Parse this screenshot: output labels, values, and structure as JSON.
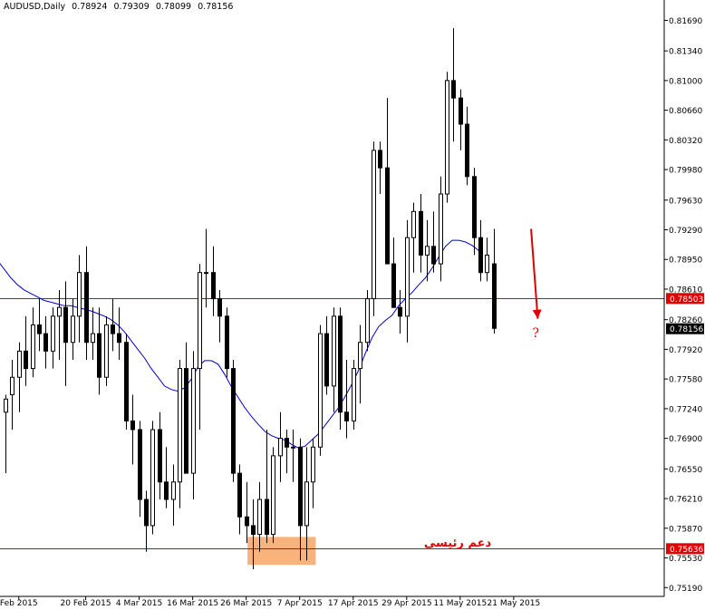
{
  "header": {
    "symbol": "AUDUSD,Daily",
    "open": "0.78924",
    "high": "0.79309",
    "low": "0.78099",
    "close": "0.78156"
  },
  "colors": {
    "candle_up_fill": "#ffffff",
    "candle_down_fill": "#000000",
    "candle_outline": "#000000",
    "moving_average": "#0000cc",
    "horizontal_lines": "#e00000",
    "support_zone": "#f8b27c",
    "arrow": "#e00000",
    "current_price_label_bg": "#000000"
  },
  "chart_data": {
    "type": "candlestick",
    "ylim": [
      0.7512,
      0.8184
    ],
    "y_ticks": [
      "0.81690",
      "0.81340",
      "0.81000",
      "0.80660",
      "0.80320",
      "0.79980",
      "0.79630",
      "0.79290",
      "0.78950",
      "0.78610",
      "0.78260",
      "0.77920",
      "0.77580",
      "0.77240",
      "0.76900",
      "0.76550",
      "0.76210",
      "0.75870",
      "0.75530",
      "0.75190"
    ],
    "x_ticks": [
      {
        "label": "Feb 2015",
        "index": 2
      },
      {
        "label": "20 Feb 2015",
        "index": 12
      },
      {
        "label": "4 Mar 2015",
        "index": 20
      },
      {
        "label": "16 Mar 2015",
        "index": 28
      },
      {
        "label": "26 Mar 2015",
        "index": 36
      },
      {
        "label": "7 Apr 2015",
        "index": 44
      },
      {
        "label": "17 Apr 2015",
        "index": 52
      },
      {
        "label": "29 Apr 2015",
        "index": 60
      },
      {
        "label": "11 May 2015",
        "index": 68
      },
      {
        "label": "21 May 2015",
        "index": 76
      }
    ],
    "candles": [
      [
        0.772,
        0.774,
        0.765,
        0.7735
      ],
      [
        0.774,
        0.778,
        0.77,
        0.776
      ],
      [
        0.776,
        0.78,
        0.772,
        0.779
      ],
      [
        0.779,
        0.783,
        0.775,
        0.777
      ],
      [
        0.777,
        0.784,
        0.776,
        0.782
      ],
      [
        0.782,
        0.785,
        0.779,
        0.781
      ],
      [
        0.781,
        0.783,
        0.777,
        0.779
      ],
      [
        0.779,
        0.784,
        0.777,
        0.783
      ],
      [
        0.783,
        0.786,
        0.778,
        0.784
      ],
      [
        0.784,
        0.787,
        0.775,
        0.78
      ],
      [
        0.78,
        0.785,
        0.778,
        0.783
      ],
      [
        0.783,
        0.79,
        0.78,
        0.788
      ],
      [
        0.788,
        0.791,
        0.778,
        0.78
      ],
      [
        0.78,
        0.784,
        0.778,
        0.781
      ],
      [
        0.781,
        0.784,
        0.774,
        0.776
      ],
      [
        0.776,
        0.783,
        0.775,
        0.782
      ],
      [
        0.782,
        0.785,
        0.779,
        0.781
      ],
      [
        0.781,
        0.784,
        0.778,
        0.78
      ],
      [
        0.78,
        0.781,
        0.77,
        0.771
      ],
      [
        0.771,
        0.774,
        0.766,
        0.77
      ],
      [
        0.77,
        0.771,
        0.76,
        0.762
      ],
      [
        0.762,
        0.763,
        0.756,
        0.759
      ],
      [
        0.759,
        0.771,
        0.758,
        0.77
      ],
      [
        0.77,
        0.772,
        0.762,
        0.764
      ],
      [
        0.764,
        0.768,
        0.761,
        0.762
      ],
      [
        0.762,
        0.766,
        0.759,
        0.764
      ],
      [
        0.764,
        0.778,
        0.761,
        0.777
      ],
      [
        0.777,
        0.78,
        0.765,
        0.765
      ],
      [
        0.765,
        0.779,
        0.762,
        0.777
      ],
      [
        0.777,
        0.789,
        0.77,
        0.788
      ],
      [
        0.788,
        0.793,
        0.784,
        0.788
      ],
      [
        0.788,
        0.791,
        0.783,
        0.785
      ],
      [
        0.785,
        0.786,
        0.78,
        0.783
      ],
      [
        0.783,
        0.784,
        0.776,
        0.777
      ],
      [
        0.777,
        0.778,
        0.764,
        0.765
      ],
      [
        0.765,
        0.766,
        0.758,
        0.76
      ],
      [
        0.76,
        0.764,
        0.757,
        0.759
      ],
      [
        0.759,
        0.762,
        0.754,
        0.758
      ],
      [
        0.758,
        0.764,
        0.756,
        0.762
      ],
      [
        0.762,
        0.77,
        0.757,
        0.758
      ],
      [
        0.758,
        0.768,
        0.757,
        0.767
      ],
      [
        0.767,
        0.772,
        0.764,
        0.769
      ],
      [
        0.769,
        0.77,
        0.765,
        0.768
      ],
      [
        0.768,
        0.77,
        0.764,
        0.768
      ],
      [
        0.768,
        0.769,
        0.755,
        0.759
      ],
      [
        0.759,
        0.768,
        0.755,
        0.764
      ],
      [
        0.764,
        0.769,
        0.761,
        0.768
      ],
      [
        0.768,
        0.782,
        0.767,
        0.781
      ],
      [
        0.781,
        0.783,
        0.774,
        0.775
      ],
      [
        0.775,
        0.784,
        0.772,
        0.783
      ],
      [
        0.783,
        0.784,
        0.77,
        0.772
      ],
      [
        0.772,
        0.778,
        0.769,
        0.771
      ],
      [
        0.771,
        0.778,
        0.77,
        0.777
      ],
      [
        0.777,
        0.782,
        0.773,
        0.78
      ],
      [
        0.78,
        0.786,
        0.779,
        0.785
      ],
      [
        0.785,
        0.803,
        0.783,
        0.802
      ],
      [
        0.802,
        0.803,
        0.797,
        0.8
      ],
      [
        0.8,
        0.808,
        0.789,
        0.789
      ],
      [
        0.789,
        0.792,
        0.784,
        0.784
      ],
      [
        0.784,
        0.786,
        0.781,
        0.783
      ],
      [
        0.783,
        0.794,
        0.78,
        0.792
      ],
      [
        0.792,
        0.796,
        0.788,
        0.795
      ],
      [
        0.795,
        0.797,
        0.788,
        0.79
      ],
      [
        0.79,
        0.794,
        0.787,
        0.791
      ],
      [
        0.791,
        0.795,
        0.788,
        0.789
      ],
      [
        0.789,
        0.799,
        0.787,
        0.797
      ],
      [
        0.797,
        0.811,
        0.796,
        0.81
      ],
      [
        0.81,
        0.816,
        0.803,
        0.808
      ],
      [
        0.808,
        0.809,
        0.802,
        0.805
      ],
      [
        0.805,
        0.807,
        0.798,
        0.799
      ],
      [
        0.799,
        0.8,
        0.79,
        0.792
      ],
      [
        0.792,
        0.794,
        0.787,
        0.788
      ],
      [
        0.788,
        0.792,
        0.787,
        0.79
      ],
      [
        0.789,
        0.793,
        0.781,
        0.7816
      ]
    ],
    "moving_average": [
      0.7894,
      0.7884,
      0.7874,
      0.7866,
      0.786,
      0.7856,
      0.7852,
      0.7848,
      0.7846,
      0.7844,
      0.7842,
      0.7842,
      0.784,
      0.7838,
      0.7836,
      0.7833,
      0.783,
      0.7826,
      0.782,
      0.7812,
      0.7802,
      0.7792,
      0.7782,
      0.777,
      0.776,
      0.775,
      0.7746,
      0.7744,
      0.7748,
      0.7758,
      0.7772,
      0.7779,
      0.7779,
      0.7775,
      0.7763,
      0.7749,
      0.7737,
      0.7725,
      0.7715,
      0.7706,
      0.7698,
      0.7693,
      0.769,
      0.7688,
      0.7683,
      0.7679,
      0.7681,
      0.7688,
      0.7695,
      0.7705,
      0.7715,
      0.7725,
      0.7738,
      0.7752,
      0.7768,
      0.7787,
      0.7805,
      0.7818,
      0.7825,
      0.7831,
      0.7842,
      0.785,
      0.7857,
      0.7866,
      0.7874,
      0.7885,
      0.7898,
      0.791,
      0.7917,
      0.7917,
      0.7915,
      0.7911,
      0.7905
    ],
    "horizontal_lines": [
      {
        "name": "resistance-line",
        "value": 0.78503,
        "label": "0.78503"
      },
      {
        "name": "support-line",
        "value": 0.75636,
        "label": "0.75636"
      }
    ],
    "current_price": {
      "value": 0.78156,
      "label": "0.78156"
    },
    "support_zone": {
      "from_index": 36.2,
      "to_index": 46.4,
      "y_low": 0.7545,
      "y_high": 0.7577
    },
    "annotations": {
      "support_text": "دعم رئيسي",
      "question_mark": "?"
    }
  }
}
